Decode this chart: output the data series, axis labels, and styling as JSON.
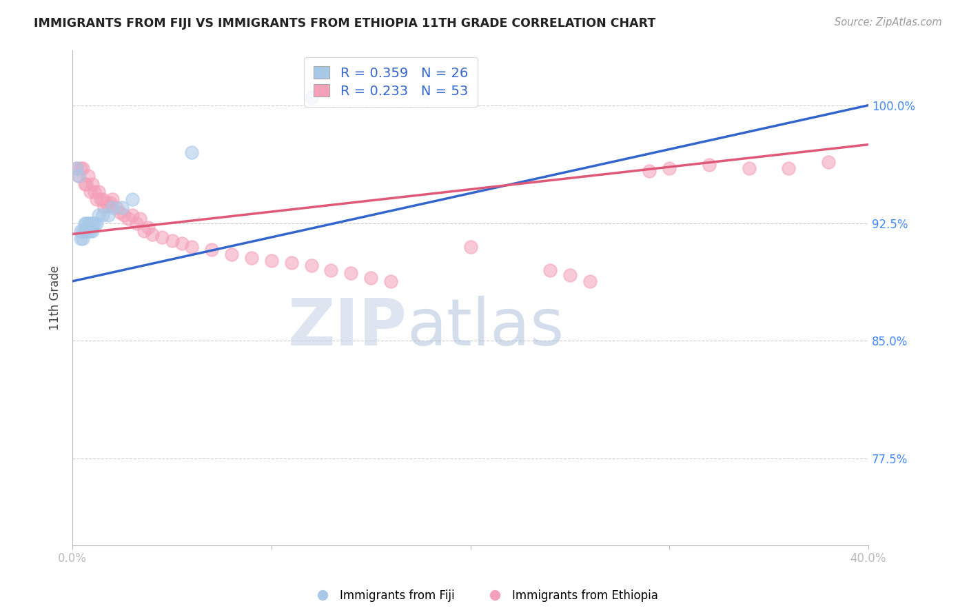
{
  "title": "IMMIGRANTS FROM FIJI VS IMMIGRANTS FROM ETHIOPIA 11TH GRADE CORRELATION CHART",
  "source": "Source: ZipAtlas.com",
  "ylabel": "11th Grade",
  "ytick_labels": [
    "100.0%",
    "92.5%",
    "85.0%",
    "77.5%"
  ],
  "ytick_values": [
    1.0,
    0.925,
    0.85,
    0.775
  ],
  "xlim": [
    0.0,
    0.4
  ],
  "ylim": [
    0.72,
    1.035
  ],
  "fiji_R": 0.359,
  "fiji_N": 26,
  "ethiopia_R": 0.233,
  "ethiopia_N": 53,
  "fiji_color": "#a8c8e8",
  "ethiopia_color": "#f4a0b8",
  "fiji_line_color": "#3366cc",
  "ethiopia_line_color": "#e05878",
  "legend_label_fiji": "Immigrants from Fiji",
  "legend_label_ethiopia": "Immigrants from Ethiopia",
  "fiji_x": [
    0.002,
    0.003,
    0.004,
    0.004,
    0.005,
    0.005,
    0.006,
    0.006,
    0.007,
    0.007,
    0.008,
    0.008,
    0.009,
    0.009,
    0.01,
    0.01,
    0.011,
    0.012,
    0.013,
    0.015,
    0.018,
    0.02,
    0.025,
    0.03,
    0.06,
    0.12
  ],
  "fiji_y": [
    0.96,
    0.955,
    0.92,
    0.915,
    0.92,
    0.915,
    0.92,
    0.925,
    0.92,
    0.925,
    0.92,
    0.925,
    0.92,
    0.925,
    0.92,
    0.925,
    0.925,
    0.925,
    0.93,
    0.93,
    0.93,
    0.935,
    0.935,
    0.94,
    0.97,
    1.005
  ],
  "ethiopia_x": [
    0.002,
    0.003,
    0.004,
    0.005,
    0.006,
    0.007,
    0.008,
    0.009,
    0.01,
    0.011,
    0.012,
    0.013,
    0.014,
    0.015,
    0.016,
    0.017,
    0.018,
    0.019,
    0.02,
    0.022,
    0.024,
    0.026,
    0.028,
    0.03,
    0.032,
    0.034,
    0.036,
    0.038,
    0.04,
    0.045,
    0.05,
    0.055,
    0.06,
    0.07,
    0.08,
    0.09,
    0.1,
    0.11,
    0.12,
    0.13,
    0.14,
    0.15,
    0.16,
    0.2,
    0.24,
    0.25,
    0.26,
    0.29,
    0.3,
    0.32,
    0.34,
    0.36,
    0.38
  ],
  "ethiopia_y": [
    0.96,
    0.955,
    0.96,
    0.96,
    0.95,
    0.95,
    0.955,
    0.945,
    0.95,
    0.945,
    0.94,
    0.945,
    0.94,
    0.94,
    0.935,
    0.938,
    0.936,
    0.938,
    0.94,
    0.935,
    0.932,
    0.93,
    0.928,
    0.93,
    0.925,
    0.928,
    0.92,
    0.922,
    0.918,
    0.916,
    0.914,
    0.912,
    0.91,
    0.908,
    0.905,
    0.903,
    0.901,
    0.9,
    0.898,
    0.895,
    0.893,
    0.89,
    0.888,
    0.91,
    0.895,
    0.892,
    0.888,
    0.958,
    0.96,
    0.962,
    0.96,
    0.96,
    0.964
  ],
  "watermark_zip": "ZIP",
  "watermark_atlas": "atlas",
  "watermark_zip_color": "#c8d4e8",
  "watermark_atlas_color": "#a8bcd8"
}
